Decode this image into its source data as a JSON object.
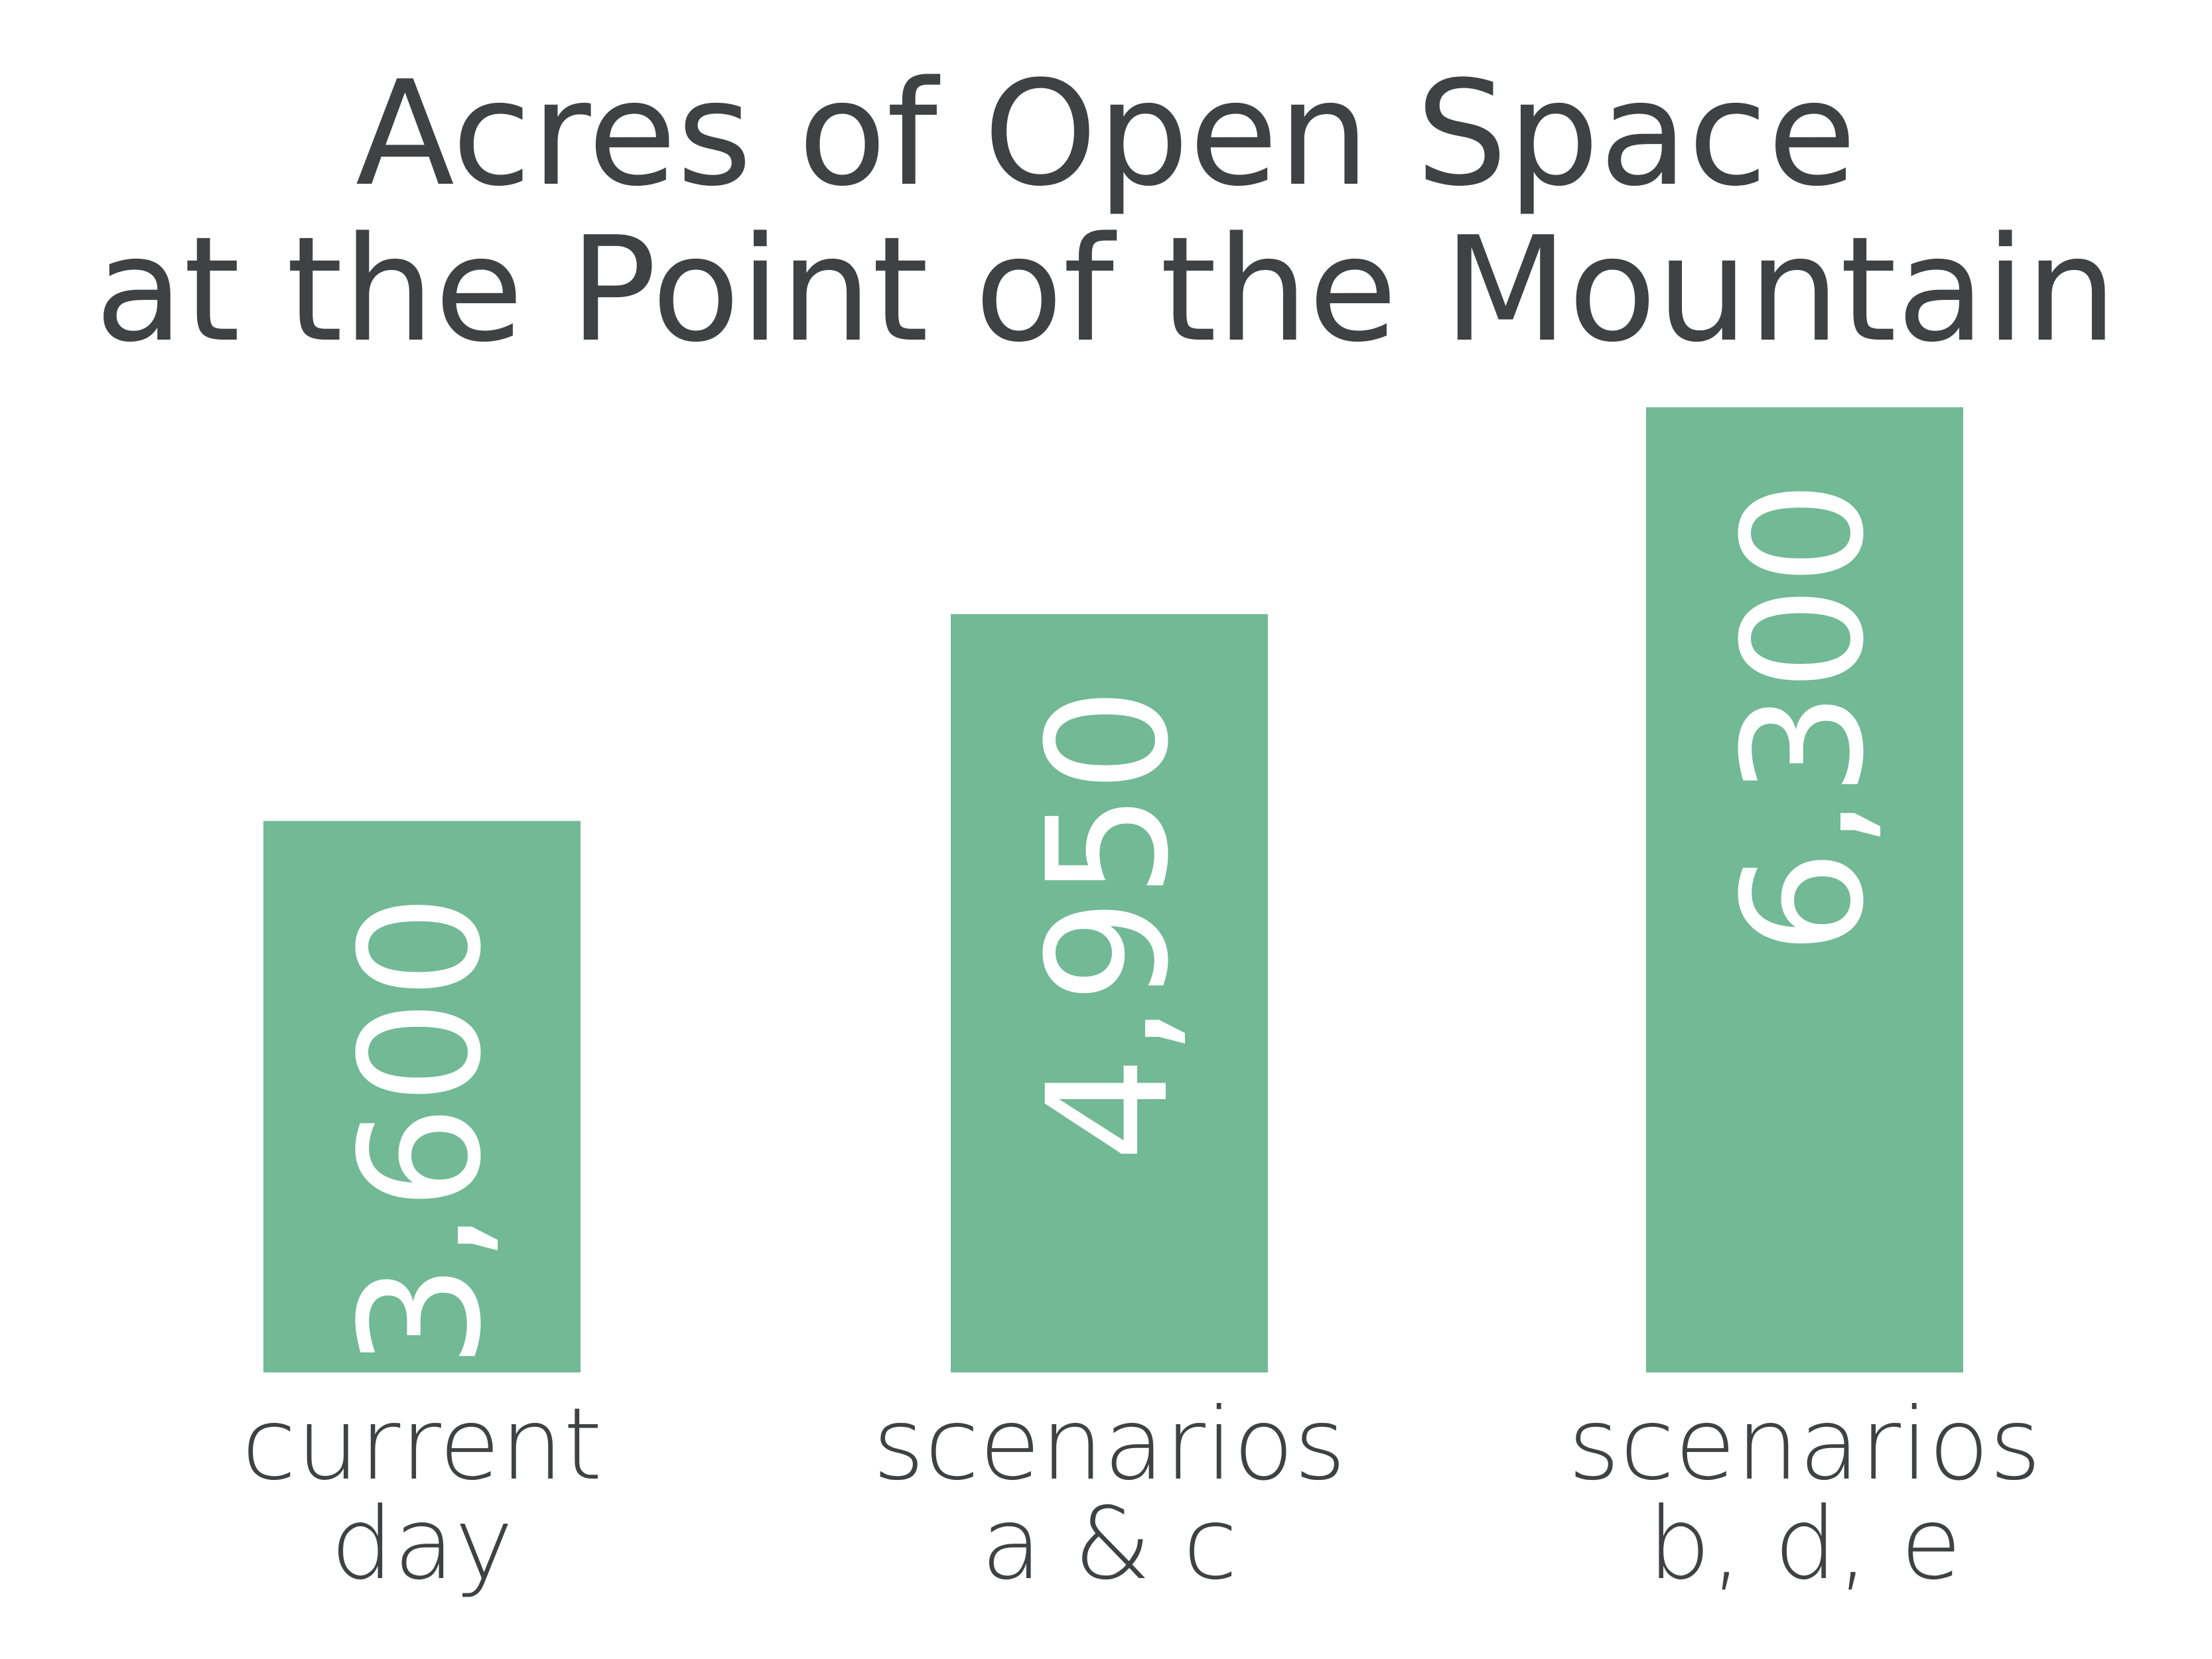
{
  "chart_data": {
    "type": "bar",
    "title": [
      "Acres of Open Space",
      "at the Point of the Mountain"
    ],
    "categories": [
      [
        "current",
        "day"
      ],
      [
        "scenarios",
        "a & c"
      ],
      [
        "scenarios",
        "b, d, e"
      ]
    ],
    "values": [
      3600,
      4950,
      6300
    ],
    "value_labels": [
      "3,600",
      "4,950",
      "6,300"
    ],
    "color": "#72b995"
  }
}
